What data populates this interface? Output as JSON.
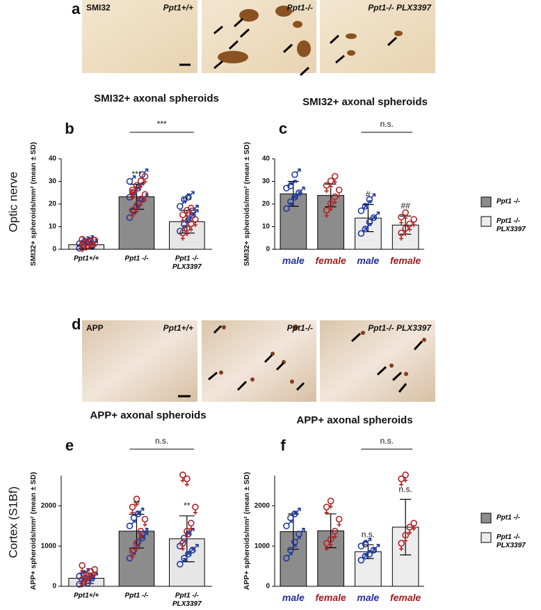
{
  "figure": {
    "rows": [
      {
        "row_label": "Optic nerve",
        "image_panel": {
          "letter": "a",
          "images": [
            {
              "labels": [
                "SMI32",
                "Ppt1+/+"
              ]
            },
            {
              "labels": [
                "Ppt1-/-"
              ]
            },
            {
              "labels": [
                "Ppt1-/- PLX3397"
              ]
            }
          ]
        },
        "section_titles": [
          "SMI32+ axonal spheroids",
          "SMI32+ axonal spheroids"
        ]
      },
      {
        "row_label": "Cortex (S1Bf)",
        "image_panel": {
          "letter": "d",
          "images": [
            {
              "labels": [
                "APP",
                "Ppt1+/+"
              ]
            },
            {
              "labels": [
                "Ppt1-/-"
              ]
            },
            {
              "labels": [
                "Ppt1-/- PLX3397"
              ]
            }
          ]
        },
        "section_titles": [
          "APP+ axonal spheroids",
          "APP+ axonal spheroids"
        ]
      }
    ]
  },
  "legends": [
    {
      "entries": [
        {
          "label": "Ppt1 -/-",
          "color": "#8c8c8c"
        },
        {
          "label": "Ppt1 -/- PLX3397",
          "color": "#ececec"
        }
      ]
    },
    {
      "entries": [
        {
          "label": "Ppt1 -/-",
          "color": "#8c8c8c"
        },
        {
          "label": "Ppt1 -/- PLX3397",
          "color": "#ececec"
        }
      ]
    }
  ],
  "chart_data": [
    {
      "type": "bar",
      "panel_letter": "b",
      "ylabel": "SMI32+ spheroids/mm² (mean ± SD)",
      "categories": [
        "Ppt1+/+",
        "Ppt1 -/-",
        "Ppt1 -/- PLX3397"
      ],
      "values": [
        2,
        23.2,
        12.2
      ],
      "errors": [
        1.5,
        5.5,
        5
      ],
      "colors": [
        "#e6e6e6",
        "#8c8c8c",
        "#e6e6e6"
      ],
      "male_color": "#1f3a9e",
      "female_color": "#b22222",
      "male_points": [
        [
          0.5,
          1,
          1.5,
          2,
          2.5,
          3,
          3.5,
          1.2
        ],
        [
          14,
          17,
          20,
          22,
          23,
          25,
          27,
          33,
          30
        ],
        [
          8,
          11,
          13,
          17,
          19,
          22,
          23,
          15
        ]
      ],
      "female_points": [
        [
          0.8,
          1.8,
          2.2,
          2.8,
          3.2,
          1.5,
          2.6
        ],
        [
          16,
          18,
          21,
          23,
          25,
          27,
          29,
          31,
          24
        ],
        [
          6,
          8,
          10,
          12,
          14,
          16,
          17
        ]
      ],
      "sig_labels": [
        null,
        "***",
        "***"
      ],
      "comparison": {
        "label": "***",
        "between": [
          "Ppt1 -/-",
          "Ppt1 -/- PLX3397"
        ]
      },
      "ylim": [
        0,
        40
      ],
      "yticks": [
        0,
        10,
        20,
        30,
        40
      ]
    },
    {
      "type": "bar",
      "panel_letter": "c",
      "ylabel": "SMI32+ spheroids/mm² (mean ± SD)",
      "categories": [
        "male",
        "female",
        "male",
        "female"
      ],
      "category_colors": [
        "#1f2f9e",
        "#a01c1c",
        "#1f2f9e",
        "#a01c1c"
      ],
      "values": [
        24.5,
        23.8,
        13.8,
        10.7
      ],
      "errors": [
        5.5,
        5,
        6,
        4
      ],
      "colors": [
        "#8c8c8c",
        "#8c8c8c",
        "#ececec",
        "#ececec"
      ],
      "male_color": "#1f3a9e",
      "female_color": "#b22222",
      "male_points": [
        [
          18,
          21,
          23,
          25,
          27,
          28,
          33
        ],
        [],
        [
          7,
          9,
          12,
          14,
          17,
          19,
          22
        ],
        []
      ],
      "female_points": [
        [],
        [
          16,
          19,
          22,
          25,
          27,
          29,
          31
        ],
        [],
        [
          6,
          8,
          10,
          12,
          13,
          15
        ]
      ],
      "sig_labels": [
        null,
        null,
        "#",
        "##"
      ],
      "comparison": {
        "label": "n.s.",
        "between": [
          "male",
          "female"
        ],
        "from_index": 2
      },
      "ylim": [
        0,
        40
      ],
      "yticks": [
        0,
        10,
        20,
        30,
        40
      ]
    },
    {
      "type": "bar",
      "panel_letter": "e",
      "ylabel": "APP+ spheroids/mm² (mean ± SD)",
      "categories": [
        "Ppt1+/+",
        "Ppt1 -/-",
        "Ppt1 -/- PLX3397"
      ],
      "values": [
        200,
        1370,
        1180
      ],
      "errors": [
        130,
        420,
        570
      ],
      "colors": [
        "#e6e6e6",
        "#8c8c8c",
        "#e6e6e6"
      ],
      "male_color": "#1f3a9e",
      "female_color": "#b22222",
      "male_points": [
        [
          50,
          100,
          150,
          200,
          250,
          300,
          80
        ],
        [
          700,
          900,
          1100,
          1300,
          1500,
          1700,
          1800,
          1200
        ],
        [
          550,
          700,
          800,
          900,
          1000,
          1200,
          1300
        ]
      ],
      "female_points": [
        [
          100,
          200,
          300,
          350,
          450,
          150
        ],
        [
          800,
          1000,
          1300,
          1600,
          1900,
          2100
        ],
        [
          1000,
          1300,
          1500,
          1900,
          2700,
          2600
        ]
      ],
      "sig_labels": [
        null,
        "**",
        "**"
      ],
      "comparison": {
        "label": "n.s.",
        "between": [
          "Ppt1 -/-",
          "Ppt1 -/- PLX3397"
        ]
      },
      "ylim": [
        0,
        2750
      ],
      "yticks": [
        0,
        1000,
        2000
      ]
    },
    {
      "type": "bar",
      "panel_letter": "f",
      "ylabel": "APP+ spheroids/mm² (mean ± SD)",
      "categories": [
        "male",
        "female",
        "male",
        "female"
      ],
      "category_colors": [
        "#1f2f9e",
        "#a01c1c",
        "#1f2f9e",
        "#a01c1c"
      ],
      "values": [
        1360,
        1380,
        860,
        1470
      ],
      "errors": [
        440,
        420,
        170,
        690
      ],
      "colors": [
        "#8c8c8c",
        "#8c8c8c",
        "#ececec",
        "#ececec"
      ],
      "male_color": "#1f3a9e",
      "female_color": "#b22222",
      "male_points": [
        [
          700,
          900,
          1100,
          1300,
          1500,
          1700,
          1800
        ],
        [],
        [
          650,
          750,
          800,
          900,
          1000,
          1050
        ],
        []
      ],
      "female_points": [
        [],
        [
          1000,
          1100,
          1300,
          1600,
          1900,
          2050
        ],
        [],
        [
          1000,
          1200,
          1400,
          1500,
          2600,
          2700
        ]
      ],
      "sig_labels": [
        null,
        null,
        "n.s.",
        "n.s."
      ],
      "comparison": {
        "label": "n.s.",
        "between": [
          "male",
          "female"
        ],
        "from_index": 2
      },
      "ylim": [
        0,
        2750
      ],
      "yticks": [
        0,
        1000,
        2000
      ]
    }
  ]
}
